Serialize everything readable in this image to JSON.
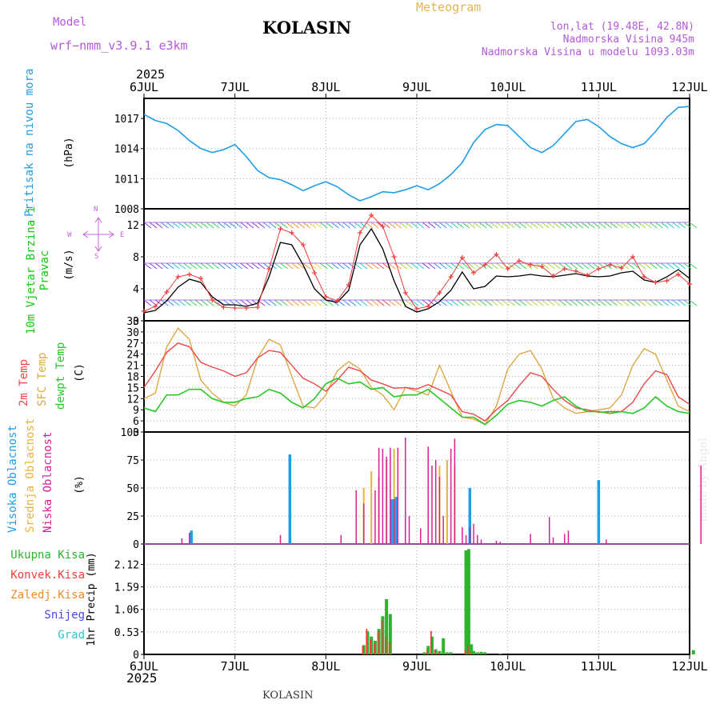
{
  "header": {
    "model_label": "Model",
    "model_name": "wrf−nmm_v3.9.1  e3km",
    "station": "KOLASIN",
    "meteogram_label": "Meteogram",
    "lonlat": "lon,lat (19.48E, 42.8N)",
    "elevation": "Nadmorska Visina 945m",
    "model_elevation": "Nadmorska Visina u modelu 1093.03m",
    "year_top": "2025",
    "year_bottom": "2025",
    "footer_station": "KOLASIN",
    "watermark": "made by Angel"
  },
  "colors": {
    "pressure": "#1e9ee6",
    "temp2m": "#f04646",
    "sfc_temp": "#dcaa46",
    "dewpoint": "#28c828",
    "wind_label": "#14c814",
    "wind_speed": "#000000",
    "gust": "#f03c3c",
    "compass": "#c864dc",
    "cloud_high": "#1e9ee6",
    "cloud_mid": "#e6b43c",
    "cloud_low": "#dc1e96",
    "precip_total": "#2db42d",
    "precip_conv": "#f03c3c",
    "precip_frozen": "#f08c28",
    "snow": "#4646e6",
    "hail": "#28c8c8",
    "model_text": "#b45adc",
    "meteogram_text": "#e6b450"
  },
  "chart_data": [
    {
      "type": "line",
      "id": "pressure",
      "title": "Pritisak na nivou mora",
      "ylabel": "(hPa)",
      "x_unit": "hours since 6 JUL 00z",
      "ylim": [
        1008,
        1019
      ],
      "yticks": [
        "1017",
        "1014",
        "1011",
        "1008"
      ],
      "ytick_values": [
        1017,
        1014,
        1011,
        1008
      ],
      "xticks": [
        "6JUL",
        "7JUL",
        "8JUL",
        "9JUL",
        "10JUL",
        "11JUL",
        "12JUL"
      ],
      "series": [
        {
          "name": "Pritisak",
          "x": [
            0,
            3,
            6,
            9,
            12,
            15,
            18,
            21,
            24,
            27,
            30,
            33,
            36,
            39,
            42,
            45,
            48,
            51,
            54,
            57,
            60,
            63,
            66,
            69,
            72,
            75,
            78,
            81,
            84,
            87,
            90,
            93,
            96,
            99,
            102,
            105,
            108,
            111,
            114,
            117,
            120,
            123,
            126,
            129,
            132,
            135,
            138,
            141,
            144
          ],
          "values": [
            1017.4,
            1016.8,
            1016.5,
            1015.8,
            1014.8,
            1014.0,
            1013.6,
            1013.9,
            1014.4,
            1013.2,
            1011.8,
            1011.1,
            1010.9,
            1010.4,
            1009.8,
            1010.3,
            1010.7,
            1010.2,
            1009.4,
            1008.8,
            1009.2,
            1009.7,
            1009.6,
            1009.9,
            1010.3,
            1009.9,
            1010.5,
            1011.4,
            1012.6,
            1014.6,
            1015.9,
            1016.4,
            1016.3,
            1015.2,
            1014.1,
            1013.6,
            1014.3,
            1015.5,
            1016.7,
            1016.9,
            1016.2,
            1015.2,
            1014.5,
            1014.1,
            1014.5,
            1015.7,
            1017.1,
            1018.1,
            1018.2
          ]
        }
      ]
    },
    {
      "type": "line",
      "id": "wind",
      "title": "10m Vjetar Brzina i Pravac",
      "ylabel": "(m/s)",
      "compass": {
        "w": "W",
        "e": "E",
        "n": "N",
        "s": "S"
      },
      "ylim": [
        0,
        14
      ],
      "yticks": [
        "12",
        "8",
        "4",
        "0"
      ],
      "ytick_values": [
        12,
        8,
        4,
        0
      ],
      "series": [
        {
          "name": "Brzina",
          "x": [
            0,
            3,
            6,
            9,
            12,
            15,
            18,
            21,
            24,
            27,
            30,
            33,
            36,
            39,
            42,
            45,
            48,
            51,
            54,
            57,
            60,
            63,
            66,
            69,
            72,
            75,
            78,
            81,
            84,
            87,
            90,
            93,
            96,
            99,
            102,
            105,
            108,
            111,
            114,
            117,
            120,
            123,
            126,
            129,
            132,
            135,
            138,
            141,
            144
          ],
          "values": [
            1.0,
            1.3,
            2.5,
            4.2,
            5.2,
            4.8,
            3.0,
            2.0,
            2.0,
            1.8,
            2.2,
            5.5,
            9.8,
            9.5,
            7.0,
            4.0,
            2.6,
            2.3,
            3.8,
            9.5,
            11.5,
            9.0,
            5.0,
            1.8,
            1.1,
            1.5,
            2.4,
            3.8,
            6.1,
            4.0,
            4.3,
            5.6,
            5.5,
            5.6,
            5.8,
            5.6,
            5.5,
            5.7,
            5.9,
            5.6,
            5.5,
            5.6,
            6.0,
            6.2,
            5.1,
            4.8,
            5.5,
            6.4,
            5.3
          ]
        },
        {
          "name": "Udar",
          "x": [
            0,
            3,
            6,
            9,
            12,
            15,
            18,
            21,
            24,
            27,
            30,
            33,
            36,
            39,
            42,
            45,
            48,
            51,
            54,
            57,
            60,
            63,
            66,
            69,
            72,
            75,
            78,
            81,
            84,
            87,
            90,
            93,
            96,
            99,
            102,
            105,
            108,
            111,
            114,
            117,
            120,
            123,
            126,
            129,
            132,
            135,
            138,
            141,
            144
          ],
          "values": [
            1.2,
            1.8,
            3.6,
            5.5,
            5.8,
            5.3,
            2.6,
            1.7,
            1.6,
            1.6,
            1.7,
            6.5,
            11.5,
            11.0,
            9.5,
            6.0,
            3.0,
            2.5,
            4.5,
            11.0,
            13.2,
            11.8,
            8.0,
            3.5,
            1.5,
            1.8,
            3.5,
            5.5,
            7.9,
            6.0,
            7.0,
            8.3,
            6.5,
            7.5,
            7.0,
            6.8,
            5.6,
            6.5,
            6.2,
            5.7,
            6.5,
            7.0,
            6.6,
            8.0,
            5.5,
            4.8,
            5.0,
            5.8,
            4.6
          ]
        }
      ]
    },
    {
      "type": "line",
      "id": "temperature",
      "title": "2m Temp / SFC Temp / dewpt Temp",
      "legend": [
        "2m Temp",
        "SFC Temp",
        "dewpt Temp"
      ],
      "ylabel": "(C)",
      "ylim": [
        3,
        33
      ],
      "yticks": [
        "33",
        "30",
        "27",
        "24",
        "21",
        "18",
        "15",
        "12",
        "9",
        "6",
        "3"
      ],
      "ytick_values": [
        33,
        30,
        27,
        24,
        21,
        18,
        15,
        12,
        9,
        6,
        3
      ],
      "series": [
        {
          "name": "2m Temp",
          "x": [
            0,
            3,
            6,
            9,
            12,
            15,
            18,
            21,
            24,
            27,
            30,
            33,
            36,
            39,
            42,
            45,
            48,
            51,
            54,
            57,
            60,
            63,
            66,
            69,
            72,
            75,
            78,
            81,
            84,
            87,
            90,
            93,
            96,
            99,
            102,
            105,
            108,
            111,
            114,
            117,
            120,
            123,
            126,
            129,
            132,
            135,
            138,
            141,
            144
          ],
          "values": [
            15.0,
            19.5,
            24.5,
            27.0,
            26.0,
            21.8,
            20.5,
            19.5,
            18.0,
            19.0,
            23.0,
            25.0,
            24.5,
            21.0,
            17.5,
            16.0,
            14.0,
            17.0,
            20.5,
            19.5,
            17.0,
            16.0,
            14.8,
            15.0,
            14.6,
            15.8,
            14.4,
            13.0,
            8.5,
            7.8,
            6.0,
            9.0,
            11.5,
            15.5,
            19.0,
            18.0,
            14.5,
            11.5,
            9.5,
            9.0,
            8.3,
            8.5,
            8.5,
            11.0,
            16.0,
            19.5,
            18.5,
            12.5,
            10.5
          ]
        },
        {
          "name": "SFC Temp",
          "x": [
            0,
            3,
            6,
            9,
            12,
            15,
            18,
            21,
            24,
            27,
            30,
            33,
            36,
            39,
            42,
            45,
            48,
            51,
            54,
            57,
            60,
            63,
            66,
            69,
            72,
            75,
            78,
            81,
            84,
            87,
            90,
            93,
            96,
            99,
            102,
            105,
            108,
            111,
            114,
            117,
            120,
            123,
            126,
            129,
            132,
            135,
            138,
            141,
            144
          ],
          "values": [
            12.0,
            13.5,
            26.0,
            31.0,
            28.0,
            17.0,
            13.5,
            11.0,
            10.0,
            13.0,
            23.0,
            28.0,
            26.5,
            18.0,
            10.0,
            9.5,
            13.0,
            19.5,
            22.0,
            20.0,
            15.0,
            13.0,
            9.0,
            15.0,
            14.0,
            13.0,
            21.0,
            14.0,
            7.0,
            6.5,
            5.0,
            10.0,
            20.0,
            24.0,
            25.0,
            20.0,
            12.0,
            9.5,
            8.0,
            8.5,
            9.0,
            9.5,
            13.0,
            21.0,
            25.5,
            24.0,
            17.0,
            10.0,
            8.5
          ]
        },
        {
          "name": "dewpt Temp",
          "x": [
            0,
            3,
            6,
            9,
            12,
            15,
            18,
            21,
            24,
            27,
            30,
            33,
            36,
            39,
            42,
            45,
            48,
            51,
            54,
            57,
            60,
            63,
            66,
            69,
            72,
            75,
            78,
            81,
            84,
            87,
            90,
            93,
            96,
            99,
            102,
            105,
            108,
            111,
            114,
            117,
            120,
            123,
            126,
            129,
            132,
            135,
            138,
            141,
            144
          ],
          "values": [
            9.5,
            8.5,
            13.0,
            13.0,
            14.5,
            14.5,
            12.0,
            11.0,
            11.0,
            12.0,
            12.5,
            14.5,
            13.5,
            11.0,
            9.5,
            12.0,
            16.0,
            17.5,
            16.0,
            16.5,
            14.5,
            15.0,
            12.5,
            13.0,
            13.0,
            14.5,
            12.0,
            9.5,
            7.0,
            7.0,
            5.0,
            7.5,
            10.5,
            11.5,
            11.0,
            10.0,
            11.5,
            12.5,
            10.0,
            8.5,
            8.5,
            8.0,
            8.5,
            8.0,
            9.5,
            12.5,
            10.0,
            8.5,
            8.0
          ]
        }
      ]
    },
    {
      "type": "bar",
      "id": "clouds",
      "legend": [
        "Visoka Oblacnost",
        "Srednja Oblacnost",
        "Niska Oblacnost"
      ],
      "ylabel": "(%)",
      "ylim": [
        0,
        100
      ],
      "yticks": [
        "100",
        "75",
        "50",
        "25",
        "0"
      ],
      "ytick_values": [
        100,
        75,
        50,
        25,
        0
      ],
      "series": [
        {
          "name": "Visoka Oblacnost",
          "x": [
            12.5,
            38.5,
            65.5,
            66.5,
            86,
            120
          ],
          "values": [
            12,
            80,
            40,
            42,
            50,
            57
          ]
        },
        {
          "name": "Srednja Oblacnost",
          "x": [
            58,
            60,
            62,
            64,
            66,
            78,
            80,
            82
          ],
          "values": [
            50,
            65,
            60,
            75,
            85,
            70,
            75,
            70
          ]
        },
        {
          "name": "Niska Oblacnost",
          "x": [
            10,
            12,
            36,
            52,
            56,
            58,
            61,
            62,
            63,
            64,
            65,
            66,
            67,
            69,
            70,
            73,
            75,
            76,
            77,
            78,
            79,
            81,
            82,
            84,
            85,
            86,
            87,
            88,
            89,
            93,
            94,
            102,
            107,
            108,
            111,
            112,
            122,
            147
          ],
          "values": [
            5,
            10,
            8,
            8,
            48,
            36,
            48,
            86,
            85,
            78,
            86,
            40,
            86,
            95,
            25,
            14,
            87,
            70,
            75,
            60,
            25,
            85,
            94,
            15,
            8,
            15,
            18,
            8,
            4,
            3,
            2,
            9,
            24,
            6,
            9,
            12,
            4,
            70
          ]
        }
      ]
    },
    {
      "type": "bar",
      "id": "precip",
      "legend": [
        "Ukupna Kisa",
        "Konvek.Kisa",
        "Zaledj.Kisa",
        "Snijeg",
        "Grad"
      ],
      "ylabel": "1hr Precip (mm)",
      "ylim": [
        0,
        2.6
      ],
      "yticks": [
        "2.12",
        "1.59",
        "1.06",
        "0.53",
        "0"
      ],
      "ytick_values": [
        2.12,
        1.59,
        1.06,
        0.53,
        0
      ],
      "series": [
        {
          "name": "Ukupna Kisa",
          "x": [
            58,
            59,
            60,
            61,
            62,
            63,
            64,
            65,
            74,
            75,
            76,
            77,
            78,
            79,
            80,
            81,
            85,
            85.7,
            86.4,
            87,
            88,
            89,
            90,
            94,
            145
          ],
          "values": [
            0.22,
            0.55,
            0.42,
            0.32,
            0.6,
            0.9,
            1.3,
            0.95,
            0.05,
            0.2,
            0.42,
            0.12,
            0.08,
            0.38,
            0.05,
            0.05,
            2.45,
            2.48,
            0.24,
            0.08,
            0.05,
            0.06,
            0.05,
            0.02,
            0.1
          ]
        },
        {
          "name": "Konvek.Kisa",
          "x": [
            58,
            59,
            60,
            61,
            62,
            63,
            64,
            65,
            75,
            76,
            77,
            78,
            85,
            85.7,
            86.4
          ],
          "values": [
            0.2,
            0.6,
            0.35,
            0.25,
            0.55,
            0.8,
            0.4,
            0.3,
            0.1,
            0.55,
            0.1,
            0.05,
            0.1,
            0.2,
            0.05
          ]
        }
      ]
    }
  ]
}
